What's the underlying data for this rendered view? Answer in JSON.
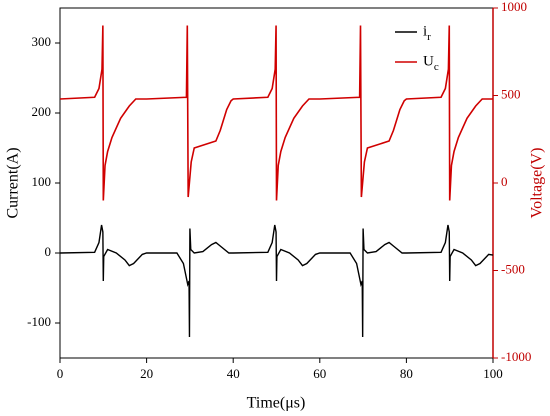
{
  "chart_data": {
    "type": "line",
    "xlabel": "Time(μs)",
    "ylabel": "Current(A)",
    "y2label": "Voltage(V)",
    "xlim": [
      0,
      100
    ],
    "xticks": [
      0,
      20,
      40,
      60,
      80,
      100
    ],
    "ylim": [
      -150,
      350
    ],
    "yticks": [
      -100,
      0,
      100,
      200,
      300
    ],
    "y2lim": [
      -1000,
      1000
    ],
    "y2ticks": [
      -1000,
      -500,
      0,
      500,
      1000
    ],
    "y2color": "#c00000",
    "legend": "upper right",
    "series": [
      {
        "name": "ir",
        "color": "#000000",
        "x": [
          0,
          8,
          9,
          9.6,
          9.9,
          10,
          10.1,
          11,
          13,
          15,
          16,
          17,
          19,
          20,
          27,
          28.5,
          29.5,
          29.8,
          29.9,
          30,
          30.2,
          31,
          33,
          35,
          36,
          37,
          39,
          40,
          48,
          49,
          49.6,
          49.9,
          50,
          50.1,
          51,
          53,
          55,
          56,
          57,
          59,
          60,
          67,
          68.5,
          69.5,
          69.8,
          69.9,
          70,
          70.2,
          71,
          73,
          75,
          76,
          77,
          79,
          80,
          88,
          89,
          89.6,
          89.9,
          90,
          90.1,
          91,
          93,
          95,
          96,
          97,
          99,
          100
        ],
        "values": [
          0,
          1,
          15,
          40,
          30,
          -40,
          -5,
          5,
          0,
          -10,
          -18,
          -15,
          -2,
          0,
          0,
          -15,
          -45,
          -40,
          -120,
          35,
          5,
          0,
          2,
          12,
          15,
          10,
          0,
          0,
          1,
          15,
          40,
          30,
          -40,
          -5,
          5,
          0,
          -10,
          -18,
          -15,
          -2,
          0,
          0,
          -15,
          -45,
          -40,
          -120,
          35,
          5,
          0,
          2,
          12,
          15,
          10,
          0,
          0,
          1,
          15,
          40,
          30,
          -40,
          -5,
          5,
          0,
          -10,
          -18,
          -15,
          -2,
          -3
        ]
      },
      {
        "name": "Uc",
        "color": "#d00000",
        "axis": "y2",
        "x": [
          0,
          8,
          9,
          9.7,
          9.9,
          10,
          10.4,
          11,
          12,
          14,
          16,
          17.5,
          20,
          29.2,
          29.4,
          29.6,
          30.3,
          31,
          36,
          37,
          38.5,
          39.5,
          40,
          48,
          49,
          49.7,
          49.9,
          50,
          50.4,
          51,
          52,
          54,
          56,
          57.5,
          60,
          69.2,
          69.4,
          69.6,
          70.3,
          71,
          76,
          77,
          78.5,
          79.5,
          80,
          88,
          89,
          89.7,
          89.9,
          90,
          90.4,
          91,
          92,
          94,
          96,
          97.5,
          100
        ],
        "values": [
          480,
          490,
          540,
          650,
          900,
          -100,
          100,
          180,
          260,
          370,
          440,
          480,
          480,
          490,
          900,
          -80,
          120,
          200,
          240,
          300,
          420,
          470,
          480,
          490,
          540,
          650,
          900,
          -100,
          100,
          180,
          260,
          370,
          440,
          480,
          480,
          490,
          900,
          -80,
          120,
          200,
          240,
          300,
          420,
          470,
          480,
          490,
          540,
          650,
          900,
          -100,
          100,
          180,
          260,
          370,
          440,
          480,
          480
        ]
      }
    ]
  }
}
